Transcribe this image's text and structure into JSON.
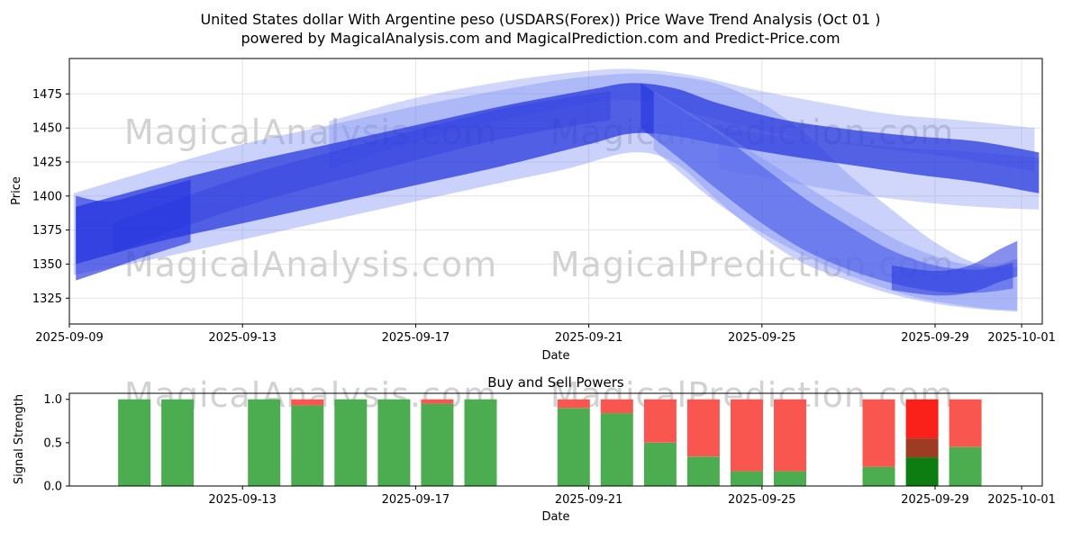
{
  "figure": {
    "title_line1": "United States dollar With Argentine peso (USDARS(Forex)) Price Wave Trend Analysis (Oct 01 )",
    "title_line2": "powered by MagicalAnalysis.com and MagicalPrediction.com and Predict-Price.com"
  },
  "watermarks": {
    "left": "MagicalAnalysis.com",
    "right": "MagicalPrediction.com"
  },
  "colors": {
    "band_dark": "#2333dd",
    "band_light": "#7b8cf4",
    "green": "#4bad4f",
    "red": "#f8564e",
    "dark_green": "#0e7d11",
    "dark_red": "#9c3d23",
    "bright_red": "#fb211b",
    "grid": "#e4e4e4",
    "watermark": "#d2d2d2",
    "axis": "#000000"
  },
  "chart_data": [
    {
      "type": "area",
      "name": "price-wave-trend",
      "xlabel": "Date",
      "ylabel": "Price",
      "x_unit": "days since 2025-09-09",
      "ylim": [
        1306,
        1501
      ],
      "xlim_days": [
        0,
        22.5
      ],
      "grid": true,
      "y_ticks": [
        1325,
        1350,
        1375,
        1400,
        1425,
        1450,
        1475
      ],
      "x_ticks": [
        {
          "day": 0,
          "label": "2025-09-09"
        },
        {
          "day": 4,
          "label": "2025-09-13"
        },
        {
          "day": 8,
          "label": "2025-09-17"
        },
        {
          "day": 12,
          "label": "2025-09-21"
        },
        {
          "day": 16,
          "label": "2025-09-25"
        },
        {
          "day": 20,
          "label": "2025-09-29"
        },
        {
          "day": 22,
          "label": "2025-10-01"
        }
      ],
      "bands": [
        {
          "name": "envelope",
          "color": "light",
          "opacity": 0.4,
          "points": [
            [
              0.1,
              1342,
              1402
            ],
            [
              2,
              1354,
              1420
            ],
            [
              4,
              1368,
              1438
            ],
            [
              6,
              1382,
              1452
            ],
            [
              8,
              1396,
              1466
            ],
            [
              10,
              1410,
              1478
            ],
            [
              11.5,
              1420,
              1486
            ],
            [
              13,
              1432,
              1490
            ],
            [
              14,
              1424,
              1488
            ],
            [
              15,
              1396,
              1482
            ],
            [
              16,
              1370,
              1468
            ],
            [
              17,
              1350,
              1446
            ],
            [
              18,
              1338,
              1416
            ],
            [
              19,
              1328,
              1390
            ],
            [
              20,
              1321,
              1366
            ],
            [
              21,
              1317,
              1350
            ],
            [
              21.9,
              1315,
              1348
            ]
          ]
        },
        {
          "name": "upper-halo",
          "color": "light",
          "opacity": 0.35,
          "points": [
            [
              6,
              1420,
              1455
            ],
            [
              8,
              1440,
              1472
            ],
            [
              10,
              1456,
              1484
            ],
            [
              12,
              1468,
              1492
            ],
            [
              13.2,
              1470,
              1493
            ],
            [
              14.5,
              1460,
              1488
            ],
            [
              16,
              1448,
              1477
            ],
            [
              17.5,
              1440,
              1468
            ],
            [
              19,
              1434,
              1460
            ],
            [
              20.5,
              1428,
              1456
            ],
            [
              22.3,
              1418,
              1450
            ]
          ]
        },
        {
          "name": "lower-halo-right",
          "color": "light",
          "opacity": 0.35,
          "points": [
            [
              15,
              1420,
              1450
            ],
            [
              17,
              1408,
              1442
            ],
            [
              19,
              1398,
              1436
            ],
            [
              21,
              1392,
              1432
            ],
            [
              22.4,
              1390,
              1428
            ]
          ]
        },
        {
          "name": "main-trend",
          "color": "dark",
          "opacity": 0.72,
          "points": [
            [
              0.15,
              1350,
              1392
            ],
            [
              2,
              1366,
              1408
            ],
            [
              4,
              1380,
              1424
            ],
            [
              6,
              1394,
              1438
            ],
            [
              8,
              1408,
              1452
            ],
            [
              10,
              1422,
              1466
            ],
            [
              12,
              1438,
              1478
            ],
            [
              13,
              1446,
              1483
            ],
            [
              14,
              1444,
              1479
            ],
            [
              15,
              1438,
              1468
            ],
            [
              16.5,
              1430,
              1456
            ],
            [
              18,
              1423,
              1449
            ],
            [
              19.5,
              1416,
              1444
            ],
            [
              21,
              1410,
              1440
            ],
            [
              22.4,
              1402,
              1432
            ]
          ]
        },
        {
          "name": "inner-strand",
          "color": "dark",
          "opacity": 0.3,
          "points": [
            [
              1,
              1358,
              1380
            ],
            [
              4,
              1392,
              1414
            ],
            [
              7,
              1418,
              1440
            ],
            [
              10,
              1442,
              1464
            ],
            [
              12.5,
              1456,
              1477
            ]
          ]
        },
        {
          "name": "descender-dark",
          "color": "dark",
          "opacity": 0.6,
          "points": [
            [
              13.2,
              1450,
              1483
            ],
            [
              14,
              1430,
              1466
            ],
            [
              15,
              1404,
              1446
            ],
            [
              16,
              1380,
              1422
            ],
            [
              17,
              1360,
              1398
            ],
            [
              18,
              1346,
              1378
            ],
            [
              19,
              1336,
              1360
            ],
            [
              20,
              1330,
              1349
            ],
            [
              21,
              1329,
              1346
            ],
            [
              21.8,
              1332,
              1351
            ]
          ]
        },
        {
          "name": "descender-fan",
          "color": "light",
          "opacity": 0.4,
          "points": [
            [
              13.5,
              1434,
              1477
            ],
            [
              15,
              1394,
              1448
            ],
            [
              16.5,
              1364,
              1418
            ],
            [
              18,
              1342,
              1388
            ],
            [
              19.5,
              1326,
              1362
            ],
            [
              21,
              1318,
              1348
            ],
            [
              21.9,
              1316,
              1354
            ]
          ]
        },
        {
          "name": "left-cluster",
          "color": "dark",
          "opacity": 0.65,
          "points": [
            [
              0.15,
              1338,
              1400
            ],
            [
              0.9,
              1346,
              1396
            ],
            [
              1.8,
              1356,
              1403
            ],
            [
              2.8,
              1366,
              1412
            ]
          ]
        },
        {
          "name": "right-hook",
          "color": "dark",
          "opacity": 0.55,
          "points": [
            [
              19,
              1331,
              1349
            ],
            [
              20,
              1327,
              1345
            ],
            [
              20.8,
              1329,
              1349
            ],
            [
              21.5,
              1337,
              1361
            ],
            [
              21.9,
              1341,
              1367
            ]
          ]
        }
      ]
    },
    {
      "type": "bar",
      "name": "buy-sell-powers",
      "title": "Buy and Sell Powers",
      "xlabel": "Date",
      "ylabel": "Signal Strength",
      "x_unit": "days since 2025-09-09",
      "ylim": [
        0,
        1.07
      ],
      "grid": false,
      "y_ticks": [
        "0.0",
        "0.5",
        "1.0"
      ],
      "x_ticks": [
        {
          "day": 4,
          "label": "2025-09-13"
        },
        {
          "day": 8,
          "label": "2025-09-17"
        },
        {
          "day": 12,
          "label": "2025-09-21"
        },
        {
          "day": 16,
          "label": "2025-09-25"
        },
        {
          "day": 20,
          "label": "2025-09-29"
        },
        {
          "day": 22,
          "label": "2025-10-01"
        }
      ],
      "bar_width_days": 0.75,
      "bars": [
        {
          "day": 1.5,
          "segments": [
            [
              "green",
              1.0
            ]
          ]
        },
        {
          "day": 2.5,
          "segments": [
            [
              "green",
              1.0
            ]
          ]
        },
        {
          "day": 4.5,
          "segments": [
            [
              "green",
              1.0
            ]
          ]
        },
        {
          "day": 5.5,
          "segments": [
            [
              "green",
              0.93
            ],
            [
              "red",
              0.07
            ]
          ]
        },
        {
          "day": 6.5,
          "segments": [
            [
              "green",
              1.0
            ]
          ]
        },
        {
          "day": 7.5,
          "segments": [
            [
              "green",
              1.0
            ]
          ]
        },
        {
          "day": 8.5,
          "segments": [
            [
              "green",
              0.95
            ],
            [
              "red",
              0.05
            ]
          ]
        },
        {
          "day": 9.5,
          "segments": [
            [
              "green",
              1.0
            ]
          ]
        },
        {
          "day": 11.65,
          "segments": [
            [
              "green",
              0.9
            ],
            [
              "red",
              0.1
            ]
          ]
        },
        {
          "day": 12.65,
          "segments": [
            [
              "green",
              0.84
            ],
            [
              "red",
              0.16
            ]
          ]
        },
        {
          "day": 13.65,
          "segments": [
            [
              "green",
              0.5
            ],
            [
              "red",
              0.5
            ]
          ]
        },
        {
          "day": 14.65,
          "segments": [
            [
              "green",
              0.34
            ],
            [
              "red",
              0.66
            ]
          ]
        },
        {
          "day": 15.65,
          "segments": [
            [
              "green",
              0.17
            ],
            [
              "red",
              0.83
            ]
          ]
        },
        {
          "day": 16.65,
          "segments": [
            [
              "green",
              0.17
            ],
            [
              "red",
              0.83
            ]
          ]
        },
        {
          "day": 18.7,
          "segments": [
            [
              "green",
              0.22
            ],
            [
              "red",
              0.78
            ]
          ]
        },
        {
          "day": 19.7,
          "segments": [
            [
              "dark_green",
              0.33
            ],
            [
              "dark_red",
              0.22
            ],
            [
              "bright_red",
              0.45
            ]
          ]
        },
        {
          "day": 20.7,
          "segments": [
            [
              "green",
              0.45
            ],
            [
              "red",
              0.55
            ]
          ]
        }
      ]
    }
  ]
}
